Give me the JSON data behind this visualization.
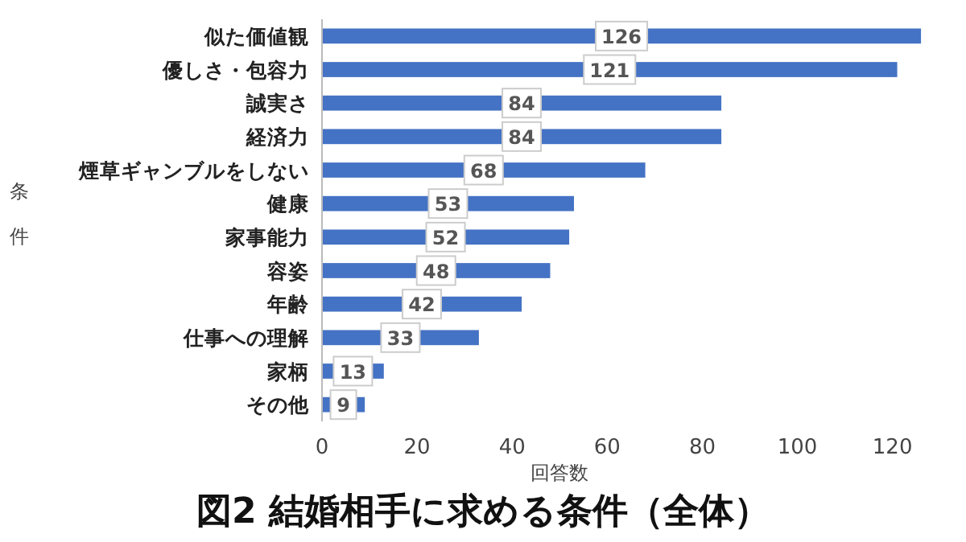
{
  "chart_data": {
    "type": "bar",
    "orientation": "horizontal",
    "title": "図2 結婚相手に求める条件（全体）",
    "xlabel": "回答数",
    "ylabel": "条件",
    "categories": [
      "似た価値観",
      "優しさ・包容力",
      "誠実さ",
      "経済力",
      "煙草ギャンブルをしない",
      "健康",
      "家事能力",
      "容姿",
      "年齢",
      "仕事への理解",
      "家柄",
      "その他"
    ],
    "values": [
      126,
      121,
      84,
      84,
      68,
      53,
      52,
      48,
      42,
      33,
      13,
      9
    ],
    "color": "#4472c4",
    "xlim": [
      0,
      127
    ],
    "xticks": [
      0,
      20,
      40,
      60,
      80,
      100,
      120
    ],
    "data_labels": true
  }
}
